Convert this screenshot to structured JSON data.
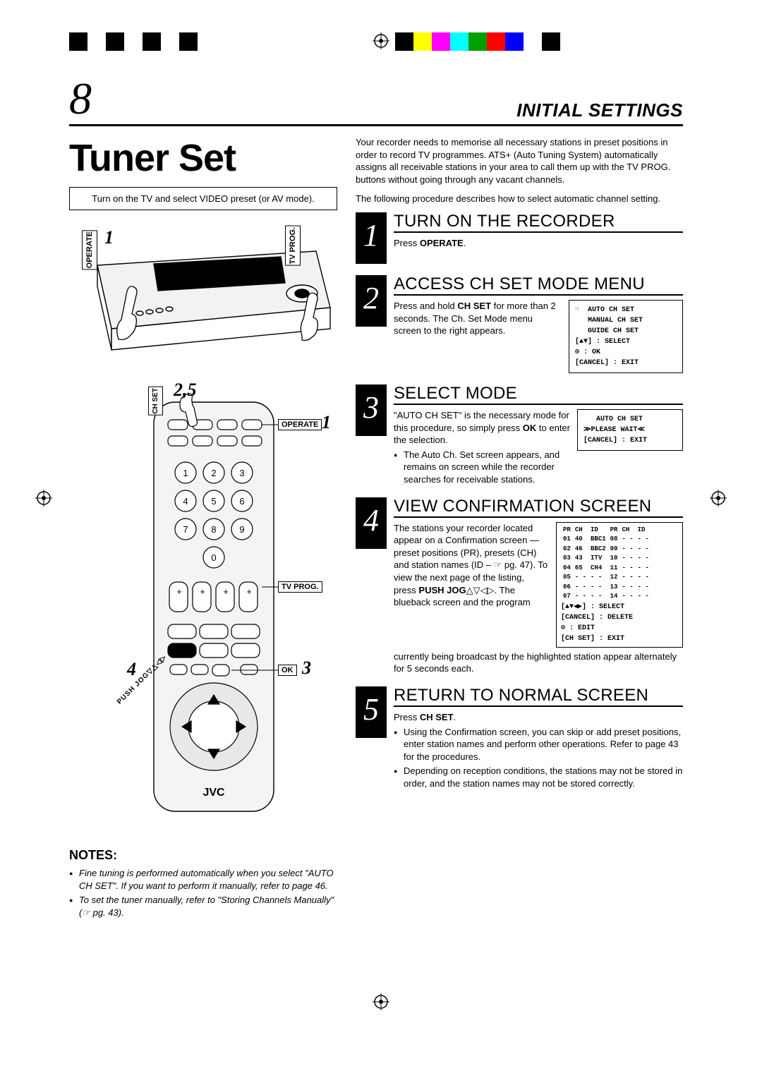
{
  "colorbar": {
    "left_start": 98,
    "left_colors": [
      "#000000",
      "#ffffff",
      "#000000",
      "#ffffff",
      "#000000",
      "#ffffff",
      "#000000"
    ],
    "left_seg_w": 26,
    "right_start": 560,
    "right_colors": [
      "#000000",
      "#ffff00",
      "#ff00ff",
      "#00ffff",
      "#00a000",
      "#ff0000",
      "#0000ff",
      "#ffffff",
      "#000000"
    ],
    "right_seg_w": 26
  },
  "page_number": "8",
  "section_header": "INITIAL SETTINGS",
  "main_title": "Tuner Set",
  "callout": "Turn on the TV and select VIDEO preset (or AV mode).",
  "vcr_labels": {
    "operate": "OPERATE",
    "tvprog": "TV PROG."
  },
  "vcr_step": "1",
  "remote": {
    "chset_label": "CH SET",
    "step_chset": "2,5",
    "operate_label": "OPERATE",
    "step_operate": "1",
    "tvprog_label": "TV PROG.",
    "ok_label": "OK",
    "step_ok": "3",
    "pushjog_label": "PUSH JOG",
    "step_pushjog": "4",
    "brand": "JVC"
  },
  "notes_heading": "NOTES:",
  "notes": [
    "Fine tuning is performed automatically when you select \"AUTO CH SET\". If you want to perform it manually, refer to page 46.",
    "To set the tuner manually, refer to \"Storing Channels Manually\" (☞ pg. 43)."
  ],
  "intro1": "Your recorder needs to memorise all necessary stations in preset positions in order to record TV programmes. ATS+ (Auto Tuning System) automatically assigns all receivable stations in your area to call them up with the TV PROG. buttons without going through any vacant channels.",
  "intro2": "The following procedure describes how to select automatic channel setting.",
  "steps": [
    {
      "num": "1",
      "title": "TURN ON THE RECORDER",
      "text": "Press OPERATE."
    },
    {
      "num": "2",
      "title": "ACCESS CH SET MODE MENU",
      "text": "Press and hold CH SET for more than 2 seconds. The Ch. Set Mode menu screen to the right appears.",
      "osd": [
        "☞  AUTO CH SET",
        "   MANUAL CH SET",
        "   GUIDE CH SET",
        "",
        "[▲▼] : SELECT",
        "⊙ : OK",
        "[CANCEL] : EXIT"
      ]
    },
    {
      "num": "3",
      "title": "SELECT MODE",
      "text": "\"AUTO CH SET\" is the necessary mode for this procedure, so simply press OK to enter the selection.",
      "bullet": "The Auto Ch. Set screen appears, and remains on screen while the recorder searches for receivable stations.",
      "osd": [
        "   AUTO CH SET",
        "",
        "≫PLEASE WAIT≪",
        "",
        "[CANCEL] : EXIT"
      ]
    },
    {
      "num": "4",
      "title": "VIEW CONFIRMATION SCREEN",
      "text_a": "The stations your recorder located appear on a Confirmation screen — preset positions (PR), presets (CH) and station names (ID – ☞ pg. 47). To view the next page of the listing, press PUSH JOG△▽◁▷. The blueback screen and the program",
      "text_b": "currently being broadcast by the highlighted station appear alternately for 5 seconds each.",
      "table_head": [
        "PR",
        "CH",
        "ID",
        "PR",
        "CH",
        "ID"
      ],
      "table_rows": [
        [
          "01",
          "40",
          "BBC1",
          "08",
          "- -",
          "- -"
        ],
        [
          "02",
          "46",
          "BBC2",
          "09",
          "- -",
          "- -"
        ],
        [
          "03",
          "43",
          "ITV",
          "10",
          "- -",
          "- -"
        ],
        [
          "04",
          "65",
          "CH4",
          "11",
          "- -",
          "- -"
        ],
        [
          "05",
          "- -",
          "- -",
          "12",
          "- -",
          "- -"
        ],
        [
          "06",
          "- -",
          "- -",
          "13",
          "- -",
          "- -"
        ],
        [
          "07",
          "- -",
          "- -",
          "14",
          "- -",
          "- -"
        ]
      ],
      "osd_foot": [
        "[▲▼◀▶] : SELECT",
        "[CANCEL] : DELETE",
        "⊙ : EDIT",
        "[CH SET] : EXIT"
      ]
    },
    {
      "num": "5",
      "title": "RETURN TO NORMAL SCREEN",
      "text": "Press CH SET.",
      "bullets": [
        "Using the Confirmation screen, you can skip or add preset positions, enter station names and perform other operations. Refer to page 43 for the procedures.",
        "Depending on reception conditions, the stations may not be stored in order, and the station names may not be stored correctly."
      ]
    }
  ]
}
